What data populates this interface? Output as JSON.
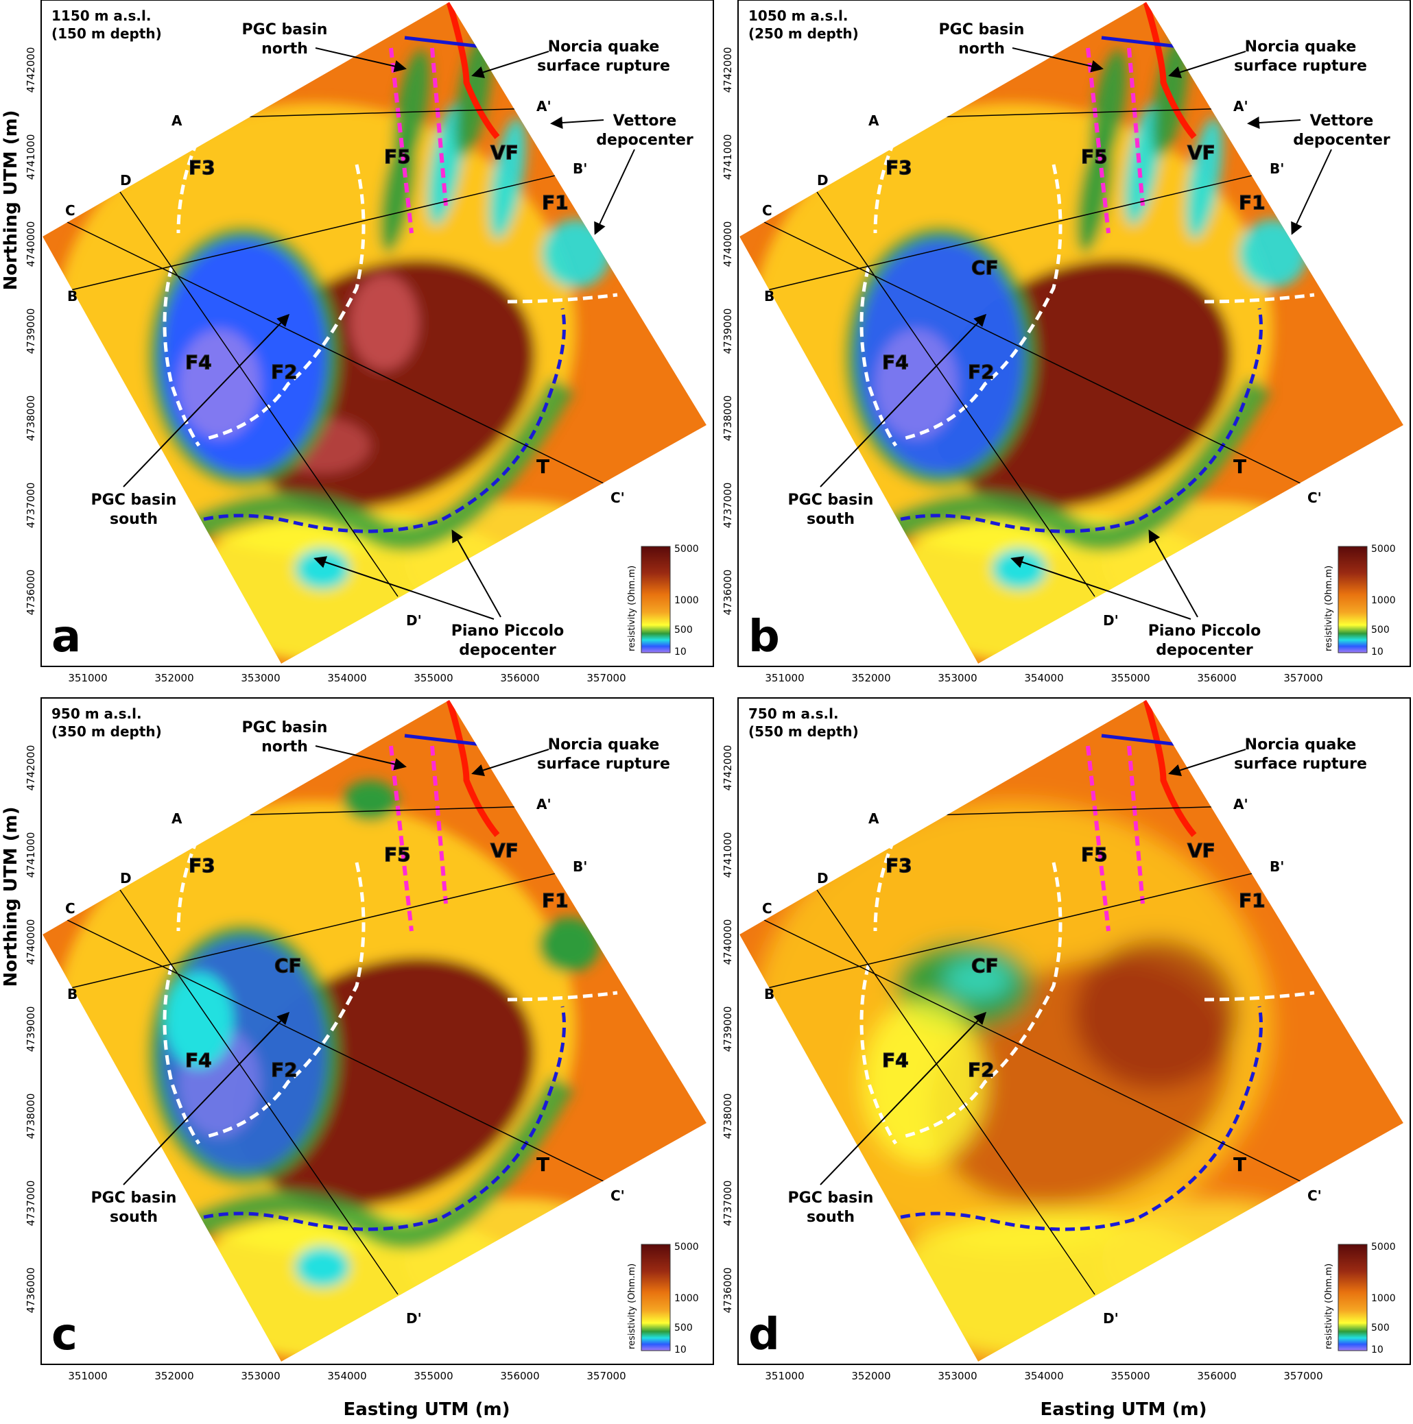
{
  "figure": {
    "x_axis_title": "Easting UTM (m)",
    "y_axis_title": "Northing UTM (m)",
    "x_ticks": [
      "351000",
      "352000",
      "353000",
      "354000",
      "355000",
      "356000",
      "357000"
    ],
    "y_ticks": [
      "4742000",
      "4741000",
      "4740000",
      "4739000",
      "4738000",
      "4737000",
      "4736000"
    ],
    "colorbar": {
      "title": "resistivity (Ohm.m)",
      "ticks": [
        "5000",
        "1000",
        "500",
        "10"
      ],
      "colors": [
        "#5a0a0a",
        "#8b1a0e",
        "#c0400a",
        "#f07810",
        "#f5a623",
        "#ffff33",
        "#2e9b3a",
        "#22e0e0",
        "#2b5bff",
        "#a27cf5"
      ]
    },
    "common_labels": {
      "A": "A",
      "A_prime": "A'",
      "B": "B",
      "B_prime": "B'",
      "C": "C",
      "C_prime": "C'",
      "D": "D",
      "D_prime": "D'",
      "F1": "F1",
      "F2": "F2",
      "F3": "F3",
      "F4": "F4",
      "F5": "F5",
      "VF": "VF",
      "T": "T",
      "CF": "CF"
    },
    "annotations": {
      "norcia_1": "Norcia quake",
      "norcia_2": "surface rupture",
      "pgc_north_1": "PGC basin",
      "pgc_north_2": "north",
      "pgc_south_1": "PGC basin",
      "pgc_south_2": "south",
      "vettore_1": "Vettore",
      "vettore_2": "depocenter",
      "piano_1": "Piano Piccolo",
      "piano_2": "depocenter"
    },
    "line_colors": {
      "fault_magenta": "#ff2bd6",
      "basin_white": "#ffffff",
      "terrace_blue": "#1a1ad6",
      "rupture_red": "#ff1a00",
      "profile_blue": "#1515d0"
    },
    "panels": [
      {
        "letter": "a",
        "depth_1": "1150 m a.s.l.",
        "depth_2": "(150 m depth)"
      },
      {
        "letter": "b",
        "depth_1": "1050 m a.s.l.",
        "depth_2": "(250 m depth)"
      },
      {
        "letter": "c",
        "depth_1": "950 m a.s.l.",
        "depth_2": "(350 m depth)"
      },
      {
        "letter": "d",
        "depth_1": "750 m a.s.l.",
        "depth_2": "(550 m depth)"
      }
    ]
  }
}
